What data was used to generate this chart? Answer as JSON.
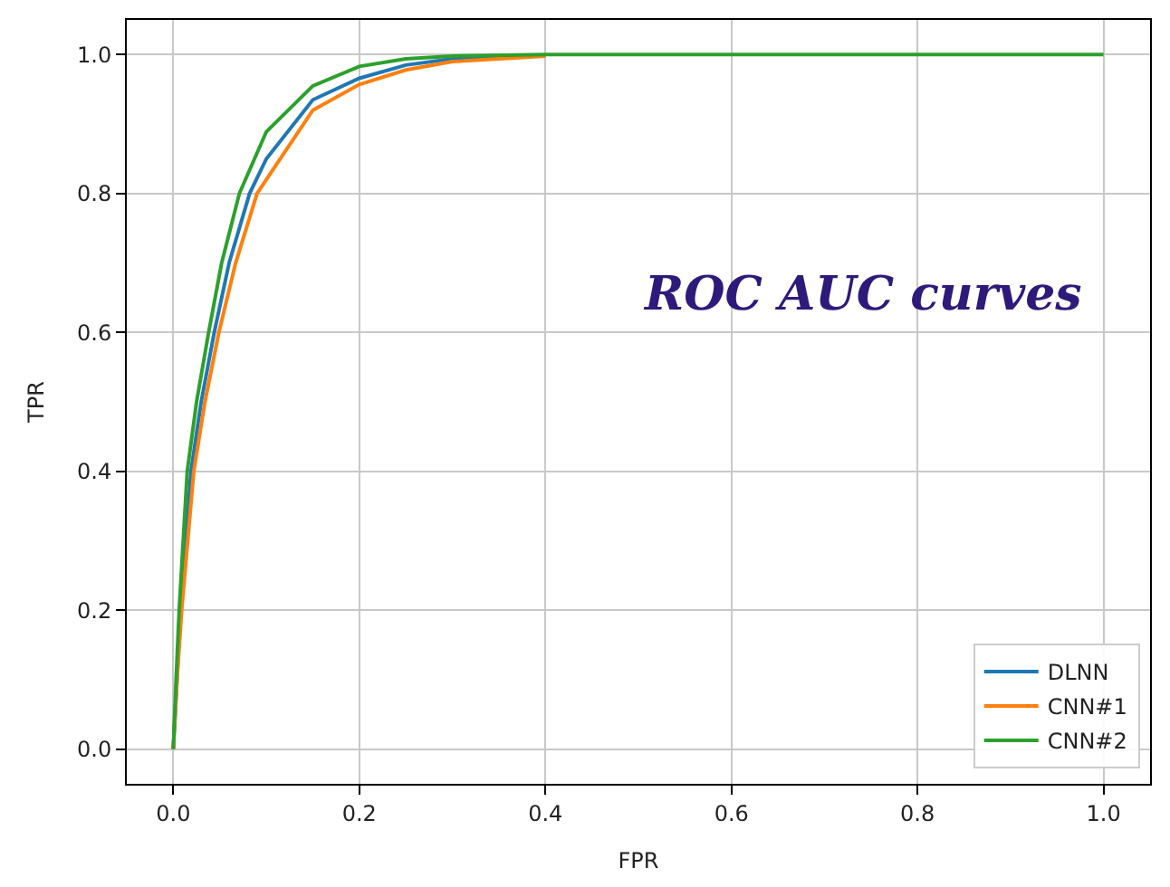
{
  "chart_data": {
    "type": "line",
    "xlabel": "FPR",
    "ylabel": "TPR",
    "annotations": [
      "ROC AUC curves"
    ],
    "xlim": [
      -0.05,
      1.05
    ],
    "ylim": [
      -0.05,
      1.05
    ],
    "xticks": [
      {
        "value": 0,
        "label": "0.0"
      },
      0.2,
      0.4,
      0.6,
      0.8,
      {
        "value": 1,
        "label": "1.0"
      }
    ],
    "yticks": [
      {
        "value": 0,
        "label": "0.0"
      },
      0.2,
      0.4,
      0.6,
      0.8,
      {
        "value": 1,
        "label": "1.0"
      }
    ],
    "grid": true,
    "legend": "bottom right",
    "line_style": "solid",
    "series": [
      {
        "name": "DLNN",
        "color": "#1f77b4",
        "x": [
          0,
          0.004,
          0.008,
          0.019,
          0.03,
          0.044,
          0.06,
          0.082,
          0.1,
          0.15,
          0.2,
          0.25,
          0.3,
          0.4
        ],
        "values": [
          0,
          0.1,
          0.2,
          0.4,
          0.5,
          0.6,
          0.7,
          0.8,
          0.85,
          0.935,
          0.966,
          0.985,
          0.994,
          0.999
        ]
      },
      {
        "name": "CNN#1",
        "color": "#ff7f0e",
        "x": [
          0,
          0.004,
          0.009,
          0.022,
          0.034,
          0.049,
          0.067,
          0.09,
          0.1,
          0.15,
          0.2,
          0.25,
          0.3,
          0.4
        ],
        "values": [
          0,
          0.1,
          0.2,
          0.4,
          0.5,
          0.6,
          0.7,
          0.8,
          0.82,
          0.92,
          0.957,
          0.978,
          0.99,
          0.998
        ]
      },
      {
        "name": "CNN#2",
        "color": "#2ca02c",
        "x": [
          0,
          0.003,
          0.0063,
          0.015,
          0.025,
          0.038,
          0.052,
          0.071,
          0.1,
          0.15,
          0.2,
          0.25,
          0.3,
          0.4,
          1.0
        ],
        "values": [
          0,
          0.1,
          0.2,
          0.4,
          0.5,
          0.6,
          0.7,
          0.8,
          0.889,
          0.955,
          0.983,
          0.994,
          0.998,
          1.0,
          1.0
        ]
      }
    ]
  }
}
